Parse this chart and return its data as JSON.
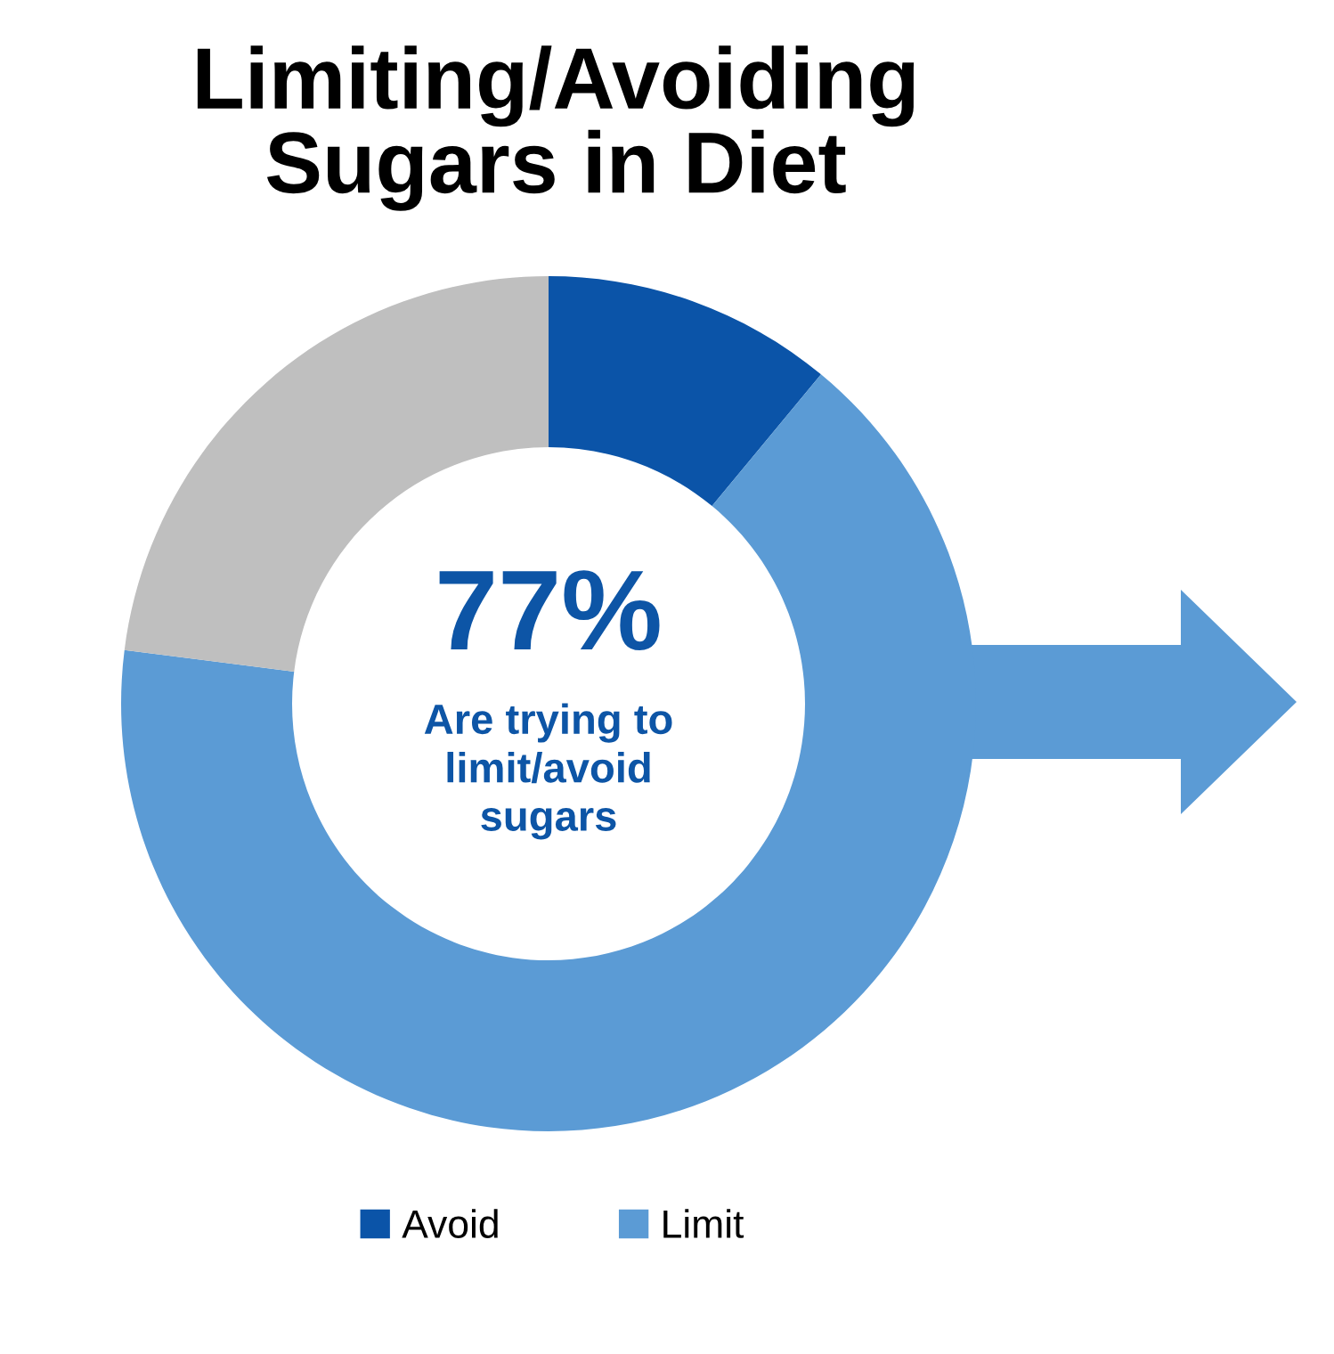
{
  "chart_data": {
    "type": "donut",
    "title": "Limiting/Avoiding\nSugars in Diet",
    "categories": [
      "Avoid",
      "Limit",
      null
    ],
    "values": [
      11,
      66,
      23
    ],
    "colors": [
      "#0b54a8",
      "#5b9bd5",
      "#bfbfbf"
    ],
    "annotations": [
      "77%",
      "Are trying to\nlimit/avoid\nsugars"
    ],
    "legend": "bottom"
  }
}
